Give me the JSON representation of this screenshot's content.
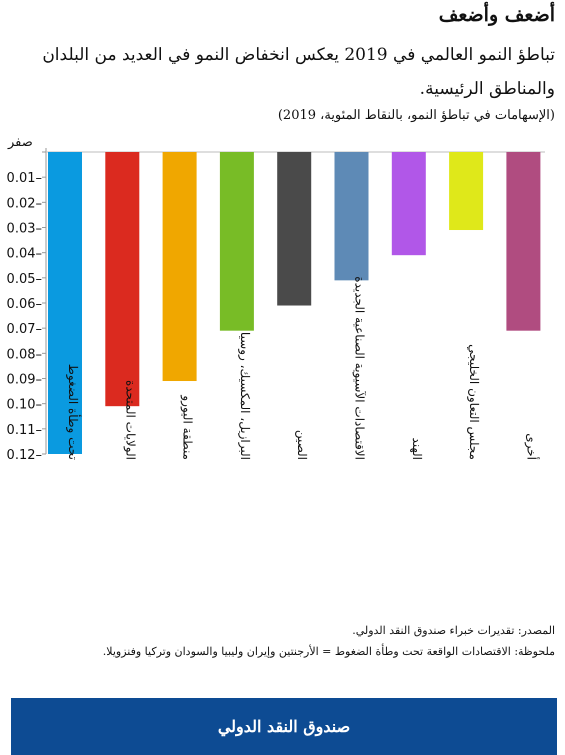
{
  "header": {
    "title": "أضعف وأضعف",
    "subtitle": "تباطؤ النمو العالمي في 2019 يعكس انخفاض النمو في العديد من البلدان والمناطق الرئيسية.",
    "units": "(الإسهامات في تباطؤ النمو، بالنقاط المئوية، 2019)"
  },
  "chart_data": {
    "type": "bar",
    "categories": [
      "تحت وطأة الضغوط",
      "الولايات المتحدة",
      "منطقة اليورو",
      "البرازيل، المكسيك، روسيا",
      "الصين",
      "الاقتصادات الآسيوية الصناعية الجديدة",
      "الهند",
      "مجلس التعاون الخليجي",
      "أخرى"
    ],
    "values": [
      -0.12,
      -0.101,
      -0.091,
      -0.071,
      -0.061,
      -0.051,
      -0.041,
      -0.031,
      -0.071
    ],
    "colors": [
      "#0a9ae0",
      "#db2a1f",
      "#f0a700",
      "#78bc26",
      "#4a4a4a",
      "#5e8ab6",
      "#b157e8",
      "#dfe81a",
      "#b04c80"
    ],
    "ylim": [
      -0.12,
      0
    ],
    "yticks": [
      {
        "value": 0,
        "label": "صفر"
      },
      {
        "value": -0.01,
        "label": "0.01–"
      },
      {
        "value": -0.02,
        "label": "0.02–"
      },
      {
        "value": -0.03,
        "label": "0.03–"
      },
      {
        "value": -0.04,
        "label": "0.04–"
      },
      {
        "value": -0.05,
        "label": "0.05–"
      },
      {
        "value": -0.06,
        "label": "0.06–"
      },
      {
        "value": -0.07,
        "label": "0.07–"
      },
      {
        "value": -0.08,
        "label": "0.08–"
      },
      {
        "value": -0.09,
        "label": "0.09–"
      },
      {
        "value": -0.1,
        "label": "0.10–"
      },
      {
        "value": -0.11,
        "label": "0.11–"
      },
      {
        "value": -0.12,
        "label": "0.12–"
      }
    ],
    "grid": false,
    "legend": "none"
  },
  "footer": {
    "source": "المصدر: تقديرات خبراء صندوق النقد الدولي.",
    "note": "ملحوظة: الاقتصادات الواقعة تحت وطأة الضغوط = الأرجنتين وإيران وليبيا والسودان وتركيا وفنزويلا.",
    "banner": "صندوق النقد الدولي"
  }
}
